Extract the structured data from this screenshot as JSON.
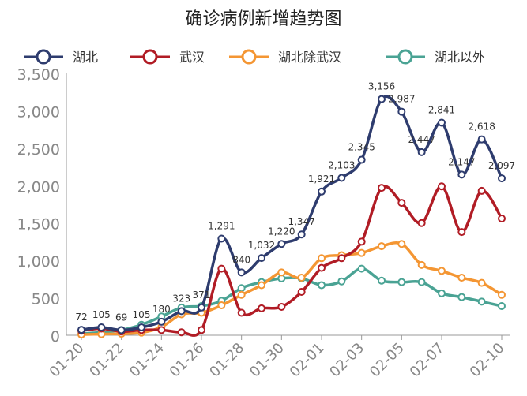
{
  "chart_data": {
    "type": "line",
    "title": "确诊病例新增趋势图",
    "xlabel": "",
    "ylabel": "",
    "ylim": [
      0,
      3500
    ],
    "yticks": [
      0,
      500,
      1000,
      1500,
      2000,
      2500,
      3000,
      3500
    ],
    "ytick_labels": [
      "0",
      "500",
      "1,000",
      "1,500",
      "2,000",
      "2,500",
      "3,000",
      "3,500"
    ],
    "grid": "y-axis line only",
    "legend": "top",
    "categories": [
      "01-20",
      "01-21",
      "01-22",
      "01-23",
      "01-24",
      "01-25",
      "01-26",
      "01-27",
      "01-28",
      "01-29",
      "01-30",
      "01-31",
      "02-01",
      "02-02",
      "02-03",
      "02-04",
      "02-05",
      "02-06",
      "02-07",
      "02-08",
      "02-09",
      "02-10"
    ],
    "xtick_labels": [
      "01-20",
      "01-22",
      "01-24",
      "01-26",
      "01-28",
      "01-30",
      "02-01",
      "02-03",
      "02-05",
      "02-07",
      "02-10"
    ],
    "xtick_indices": [
      0,
      2,
      4,
      6,
      8,
      10,
      12,
      14,
      16,
      18,
      21
    ],
    "series": [
      {
        "name": "湖北",
        "color": "#2e3c6e",
        "values": [
          72,
          105,
          69,
          105,
          180,
          323,
          371,
          1291,
          840,
          1032,
          1220,
          1347,
          1921,
          2103,
          2345,
          3156,
          2987,
          2447,
          2841,
          2147,
          2618,
          2097
        ],
        "labels": [
          "72",
          "105",
          "69",
          "105",
          "180",
          "323",
          "371",
          "1,291",
          "840",
          "1,032",
          "1,220",
          "1,347",
          "1,921",
          "2,103",
          "2,345",
          "3,156",
          "2,987",
          "2,447",
          "2,841",
          "2,147",
          "2,618",
          "2,097"
        ]
      },
      {
        "name": "武汉",
        "color": "#b11c25",
        "values": [
          60,
          90,
          50,
          70,
          70,
          40,
          70,
          890,
          300,
          360,
          380,
          580,
          900,
          1030,
          1250,
          1970,
          1770,
          1500,
          1990,
          1380,
          1930,
          1560
        ]
      },
      {
        "name": "湖北除武汉",
        "color": "#f49633",
        "values": [
          10,
          15,
          20,
          35,
          110,
          280,
          300,
          400,
          540,
          670,
          840,
          770,
          1030,
          1070,
          1100,
          1190,
          1220,
          940,
          860,
          770,
          700,
          540
        ]
      },
      {
        "name": "湖北以外",
        "color": "#4aa394",
        "values": [
          20,
          40,
          70,
          140,
          250,
          370,
          390,
          460,
          630,
          710,
          760,
          760,
          670,
          720,
          890,
          730,
          710,
          710,
          560,
          510,
          450,
          390
        ]
      }
    ]
  }
}
